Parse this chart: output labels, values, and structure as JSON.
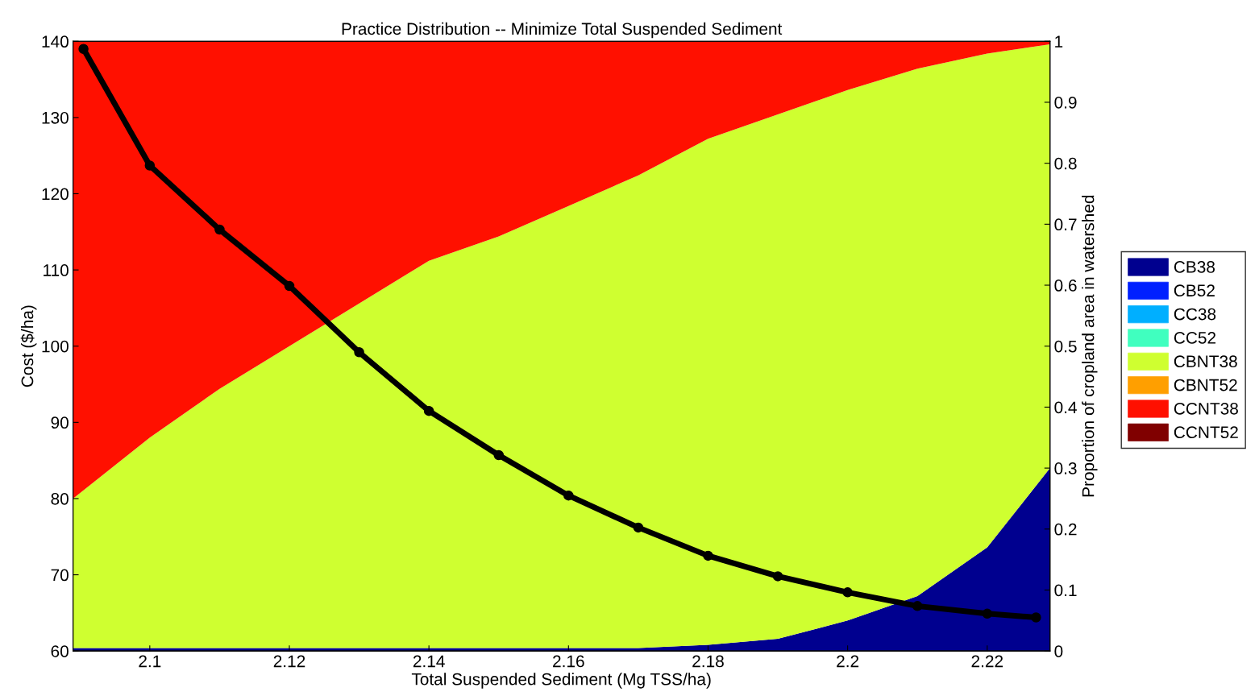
{
  "chart_data": {
    "type": "area",
    "stacked": true,
    "title": "Practice Distribution -- Minimize Total Suspended Sediment",
    "xlabel": "Total Suspended Sediment (Mg TSS/ha)",
    "ylabel": "Cost ($/ha)",
    "y2label": "Proportion of cropland area in watershed",
    "x": [
      2.089,
      2.1,
      2.11,
      2.12,
      2.13,
      2.14,
      2.15,
      2.16,
      2.17,
      2.18,
      2.19,
      2.2,
      2.21,
      2.22,
      2.229
    ],
    "series": [
      {
        "name": "CB38",
        "color": "#00008f",
        "axis": "y2",
        "values": [
          0.005,
          0.005,
          0.005,
          0.005,
          0.005,
          0.005,
          0.005,
          0.005,
          0.005,
          0.01,
          0.02,
          0.05,
          0.09,
          0.17,
          0.3
        ]
      },
      {
        "name": "CB52",
        "color": "#0020ff",
        "axis": "y2",
        "values": [
          null,
          null,
          null,
          null,
          null,
          null,
          null,
          null,
          null,
          null,
          null,
          null,
          null,
          null,
          null
        ]
      },
      {
        "name": "CC38",
        "color": "#00afff",
        "axis": "y2",
        "values": [
          null,
          null,
          null,
          null,
          null,
          null,
          null,
          null,
          null,
          null,
          null,
          null,
          null,
          null,
          null
        ]
      },
      {
        "name": "CC52",
        "color": "#40ffbf",
        "axis": "y2",
        "values": [
          null,
          null,
          null,
          null,
          null,
          null,
          null,
          null,
          null,
          null,
          null,
          null,
          null,
          null,
          null
        ]
      },
      {
        "name": "CBNT38",
        "color": "#cfff30",
        "axis": "y2",
        "values": [
          0.245,
          0.345,
          0.425,
          0.495,
          0.565,
          0.635,
          0.675,
          0.725,
          0.775,
          0.83,
          0.86,
          0.87,
          0.865,
          0.81,
          0.695
        ]
      },
      {
        "name": "CBNT52",
        "color": "#ff9f00",
        "axis": "y2",
        "values": [
          null,
          null,
          null,
          null,
          null,
          null,
          null,
          null,
          null,
          null,
          null,
          null,
          null,
          null,
          null
        ]
      },
      {
        "name": "CCNT38",
        "color": "#ff1000",
        "axis": "y2",
        "values": [
          0.75,
          0.65,
          0.57,
          0.5,
          0.43,
          0.36,
          0.32,
          0.27,
          0.22,
          0.16,
          0.12,
          0.08,
          0.045,
          0.02,
          0.005
        ]
      },
      {
        "name": "CCNT52",
        "color": "#800000",
        "axis": "y2",
        "values": [
          null,
          null,
          null,
          null,
          null,
          null,
          null,
          null,
          null,
          null,
          null,
          null,
          null,
          null,
          null
        ]
      },
      {
        "type": "line",
        "color": "#000000",
        "axis": "y",
        "marker": "circle",
        "x": [
          2.0905,
          2.1,
          2.11,
          2.12,
          2.13,
          2.14,
          2.15,
          2.16,
          2.17,
          2.18,
          2.19,
          2.2,
          2.21,
          2.22,
          2.227
        ],
        "values": [
          139,
          123.7,
          115.3,
          107.9,
          99.2,
          91.5,
          85.7,
          80.4,
          76.2,
          72.5,
          69.8,
          67.7,
          65.9,
          64.9,
          64.4
        ]
      }
    ],
    "xlim": [
      2.089,
      2.229
    ],
    "xticks": [
      2.1,
      2.12,
      2.14,
      2.16,
      2.18,
      2.2,
      2.22
    ],
    "ylim": [
      60,
      140
    ],
    "yticks": [
      60,
      70,
      80,
      90,
      100,
      110,
      120,
      130,
      140
    ],
    "y2lim": [
      0,
      1
    ],
    "y2ticks": [
      0,
      0.1,
      0.2,
      0.3,
      0.4,
      0.5,
      0.6,
      0.7,
      0.8,
      0.9,
      1
    ],
    "legend": "right",
    "grid": false
  }
}
